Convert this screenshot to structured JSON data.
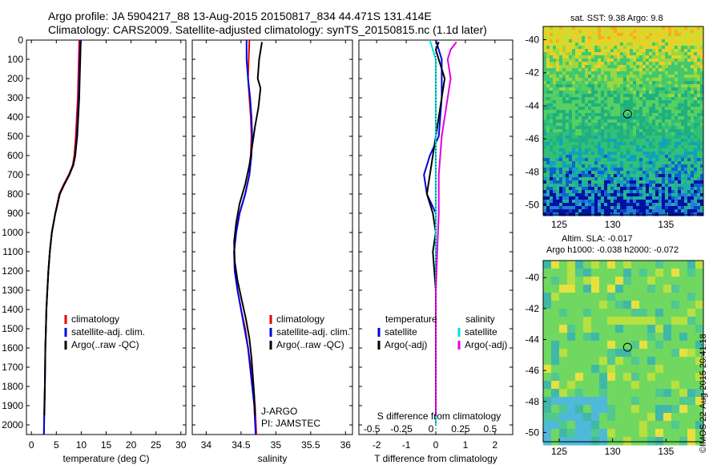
{
  "header": {
    "title_line1": "Argo profile: JA 5904217_88 13-Aug-2015 20150817_834 44.471S 131.414E",
    "title_line2": "Climatology: CARS2009. Satellite-adjusted climatology: synTS_20150815.nc (1.1d later)"
  },
  "colors": {
    "climatology": "#e00000",
    "satellite": "#0000e0",
    "argo": "#000000",
    "salinity_satellite": "#00e0e0",
    "salinity_argo": "#e000e0"
  },
  "chart_data": [
    {
      "type": "line",
      "id": "temperature",
      "xlabel": "temperature (deg C)",
      "xlim": [
        -1,
        31
      ],
      "xticks": [
        0,
        5,
        10,
        15,
        20,
        25,
        30
      ],
      "ylim": [
        0,
        2050
      ],
      "yticks": [
        0,
        100,
        200,
        300,
        400,
        500,
        600,
        700,
        800,
        900,
        1000,
        1100,
        1200,
        1300,
        1400,
        1500,
        1600,
        1700,
        1800,
        1900,
        2000
      ],
      "legend": [
        "climatology",
        "satellite-adj. clim.",
        "Argo(..raw -QC)"
      ],
      "series": [
        {
          "name": "climatology",
          "x": [
            9.6,
            9.5,
            9.4,
            9.3,
            9.1,
            8.9,
            8.6,
            8.3,
            7.5,
            6.5,
            5.6,
            4.8,
            4.1,
            3.7,
            3.4,
            3.2,
            3.0,
            2.9,
            2.8,
            2.7,
            2.6,
            2.5
          ],
          "y": [
            0,
            100,
            200,
            300,
            400,
            500,
            600,
            650,
            700,
            750,
            800,
            900,
            1000,
            1100,
            1200,
            1300,
            1400,
            1500,
            1600,
            1800,
            1900,
            2050
          ]
        },
        {
          "name": "satellite-adj. clim.",
          "x": [
            9.8,
            9.7,
            9.6,
            9.5,
            9.3,
            9.1,
            8.8,
            8.4,
            7.6,
            6.6,
            5.7,
            4.8,
            4.1,
            3.7,
            3.4,
            3.2,
            3.0,
            2.9,
            2.8,
            2.7,
            2.6,
            2.5
          ],
          "y": [
            0,
            100,
            200,
            300,
            400,
            500,
            600,
            650,
            700,
            750,
            800,
            900,
            1000,
            1100,
            1200,
            1300,
            1400,
            1500,
            1600,
            1800,
            1900,
            2050
          ]
        },
        {
          "name": "Argo(..raw -QC)",
          "x": [
            9.9,
            9.8,
            9.7,
            9.6,
            9.4,
            9.2,
            8.8,
            8.4,
            7.6,
            6.6,
            5.7,
            4.8,
            4.1,
            3.7,
            3.4,
            3.2,
            3.0,
            2.9,
            2.8,
            2.7,
            2.6
          ],
          "y": [
            10,
            100,
            200,
            300,
            400,
            500,
            600,
            650,
            700,
            750,
            800,
            900,
            1000,
            1100,
            1200,
            1300,
            1400,
            1500,
            1600,
            1800,
            1950
          ]
        }
      ]
    },
    {
      "type": "line",
      "id": "salinity",
      "xlabel": "salinity",
      "xlim": [
        33.8,
        36.1
      ],
      "xticks": [
        34,
        34.5,
        35,
        35.5,
        36
      ],
      "ylim": [
        0,
        2050
      ],
      "legend": [
        "climatology",
        "satellite-adj. clim.",
        "Argo(..raw -QC)"
      ],
      "annotation": [
        "J-ARGO",
        "PI: JAMSTEC"
      ],
      "series": [
        {
          "name": "climatology",
          "x": [
            34.62,
            34.61,
            34.6,
            34.62,
            34.64,
            34.65,
            34.64,
            34.62,
            34.56,
            34.48,
            34.43,
            34.4,
            34.41,
            34.45,
            34.5,
            34.56,
            34.6,
            34.64,
            34.67,
            34.7,
            34.72
          ],
          "y": [
            0,
            100,
            200,
            300,
            400,
            500,
            600,
            700,
            800,
            900,
            1000,
            1100,
            1200,
            1300,
            1400,
            1500,
            1600,
            1700,
            1800,
            1900,
            2050
          ]
        },
        {
          "name": "satellite-adj. clim.",
          "x": [
            34.58,
            34.58,
            34.6,
            34.63,
            34.65,
            34.66,
            34.65,
            34.62,
            34.56,
            34.48,
            34.43,
            34.4,
            34.41,
            34.45,
            34.5,
            34.55,
            34.6,
            34.63,
            34.66,
            34.69,
            34.71
          ],
          "y": [
            0,
            100,
            200,
            300,
            400,
            500,
            600,
            700,
            800,
            900,
            1000,
            1100,
            1200,
            1300,
            1400,
            1500,
            1600,
            1700,
            1800,
            1900,
            2050
          ]
        },
        {
          "name": "Argo(..raw -QC)",
          "x": [
            34.8,
            34.76,
            34.74,
            34.78,
            34.75,
            34.7,
            34.66,
            34.62,
            34.56,
            34.48,
            34.43,
            34.4,
            34.41,
            34.45,
            34.51,
            34.57,
            34.62,
            34.65,
            34.67,
            34.69,
            34.7
          ],
          "y": [
            10,
            100,
            200,
            250,
            350,
            450,
            550,
            650,
            750,
            850,
            950,
            1050,
            1150,
            1250,
            1350,
            1450,
            1550,
            1650,
            1750,
            1850,
            1950
          ]
        }
      ]
    },
    {
      "type": "line",
      "id": "difference",
      "xlabel": "T difference from climatology",
      "xlabel_top": "S difference from climatology",
      "xlim": [
        -2.6,
        2.6
      ],
      "xticks": [
        -2,
        -1,
        0,
        1,
        2
      ],
      "xtick_labels": [
        "-2",
        "-1",
        "0",
        "1",
        "2"
      ],
      "xticks_s": [
        -0.5,
        -0.25,
        0,
        0.25,
        0.5
      ],
      "xticks_s_labels": [
        "-0.5",
        "-0.25",
        "0",
        "0.25",
        "0.5"
      ],
      "ylim": [
        0,
        2050
      ],
      "legend_temperature": [
        "temperature",
        "satellite",
        "Argo(-adj)"
      ],
      "legend_salinity": [
        "salinity",
        "satellite",
        "Argo(-adj)"
      ],
      "series": [
        {
          "name": "temperature satellite",
          "x": [
            0.0,
            0.1,
            0.2,
            0.2,
            0.1,
            -0.2,
            -0.4,
            -0.3,
            0.0,
            0.0,
            0.0,
            0.0,
            0.0,
            0.0,
            0.0,
            0.0,
            0.0,
            0.0
          ],
          "y": [
            0,
            50,
            100,
            300,
            500,
            600,
            700,
            800,
            900,
            1000,
            1100,
            1200,
            1400,
            1500,
            1600,
            1700,
            1800,
            2000
          ]
        },
        {
          "name": "temperature Argo(-adj)",
          "x": [
            0.1,
            0.0,
            0.1,
            0.3,
            0.2,
            0.1,
            0.0,
            -0.1,
            -0.3,
            -0.1,
            0.0,
            -0.1,
            0.0,
            0.0,
            0.0,
            0.0,
            0.0,
            0.0
          ],
          "y": [
            10,
            50,
            100,
            200,
            300,
            400,
            500,
            600,
            800,
            900,
            1000,
            1100,
            1300,
            1500,
            1600,
            1700,
            1800,
            1950
          ]
        },
        {
          "name": "salinity satellite",
          "x": [
            -0.2,
            0.0,
            0.0,
            0.0,
            0.0,
            0.0,
            0.0,
            0.0,
            0.0,
            0.0,
            0.0,
            0.0,
            0.0,
            0.0
          ],
          "y": [
            0,
            100,
            200,
            300,
            400,
            500,
            600,
            800,
            1000,
            1200,
            1400,
            1600,
            1800,
            2000
          ]
        },
        {
          "name": "salinity Argo(-adj)",
          "x": [
            0.7,
            0.5,
            0.4,
            0.5,
            0.4,
            0.3,
            0.2,
            0.1,
            0.1,
            0.05,
            0.0,
            0.0,
            0.0,
            0.0
          ],
          "y": [
            10,
            50,
            100,
            200,
            300,
            400,
            500,
            700,
            900,
            1100,
            1300,
            1500,
            1700,
            1950
          ]
        }
      ]
    },
    {
      "type": "heatmap",
      "id": "sst-map",
      "title": "sat. SST: 9.38 Argo: 9.8",
      "xticks": [
        125,
        130,
        135
      ],
      "yticks": [
        -40,
        -42,
        -44,
        -46,
        -48,
        -50
      ],
      "xlim": [
        123.5,
        138.5
      ],
      "ylim": [
        -50.6,
        -39.2
      ],
      "marker": [
        131.4,
        -44.5
      ]
    },
    {
      "type": "heatmap",
      "id": "sla-map",
      "title_line1": "Altim. SLA: -0.017",
      "title_line2": "Argo h1000: -0.038 h2000: -0.072",
      "xticks": [
        125,
        130,
        135
      ],
      "yticks": [
        -40,
        -42,
        -44,
        -46,
        -48,
        -50
      ],
      "xlim": [
        123.5,
        138.5
      ],
      "ylim": [
        -50.6,
        -38.9
      ],
      "marker": [
        131.4,
        -44.5
      ]
    }
  ],
  "stamp": "©IMOS 22-Aug-2015 20:41:18"
}
